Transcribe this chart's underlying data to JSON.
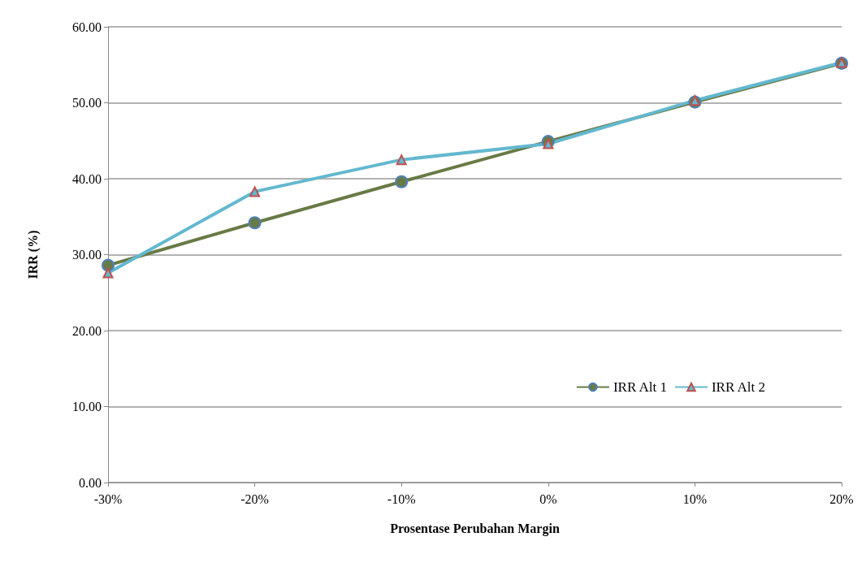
{
  "chart_data": {
    "type": "line",
    "xlabel": "Prosentase Perubahan Margin",
    "ylabel": "IRR (%)",
    "categories": [
      "-30%",
      "-20%",
      "-10%",
      "0%",
      "10%",
      "20%"
    ],
    "series": [
      {
        "name": "IRR Alt 1",
        "color": "#687a45",
        "marker": "circle",
        "values": [
          28.6,
          34.2,
          39.6,
          44.9,
          50.1,
          55.2
        ]
      },
      {
        "name": "IRR Alt 2",
        "color": "#63b8cf",
        "marker": "triangle",
        "values": [
          27.6,
          38.3,
          42.5,
          44.6,
          50.3,
          55.3
        ]
      }
    ],
    "ylim": [
      0,
      60
    ],
    "yticks": [
      {
        "value": 0,
        "label": "0.00"
      },
      {
        "value": 10,
        "label": "10.00"
      },
      {
        "value": 20,
        "label": "20.00"
      },
      {
        "value": 30,
        "label": "30.00"
      },
      {
        "value": 40,
        "label": "40.00"
      },
      {
        "value": 50,
        "label": "50.00"
      },
      {
        "value": 60,
        "label": "60.00"
      }
    ],
    "grid": "y",
    "legend": "right"
  }
}
